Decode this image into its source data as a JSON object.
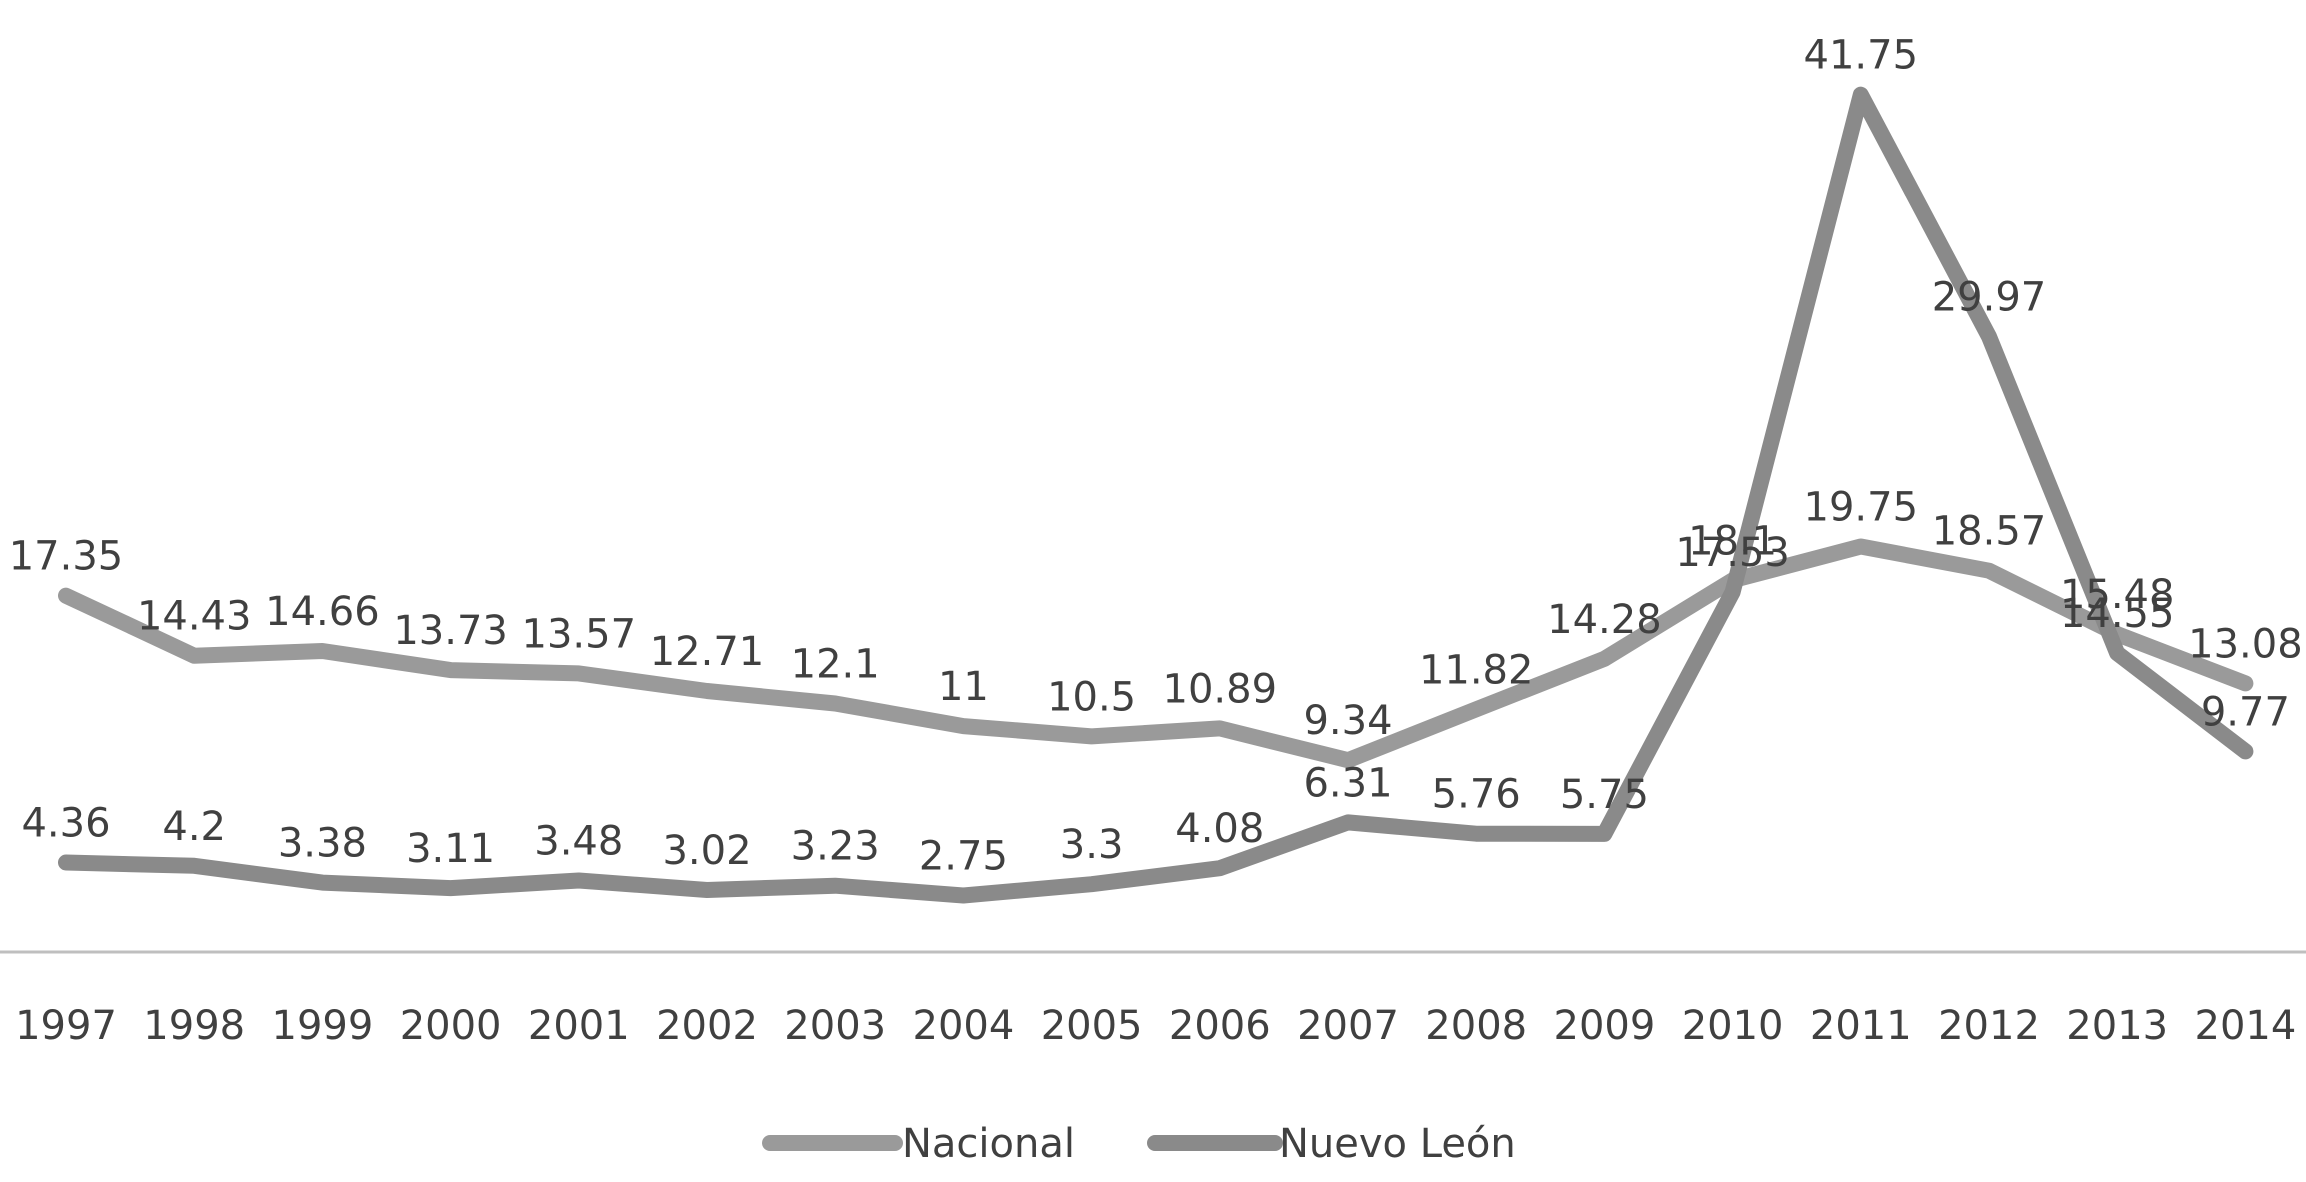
{
  "chart_data": {
    "type": "line",
    "title": "",
    "xlabel": "",
    "ylabel": "",
    "x": [
      "1997",
      "1998",
      "1999",
      "2000",
      "2001",
      "2002",
      "2003",
      "2004",
      "2005",
      "2006",
      "2007",
      "2008",
      "2009",
      "2010",
      "2011",
      "2012",
      "2013",
      "2014"
    ],
    "ylim": [
      0,
      45
    ],
    "grid": false,
    "legend": "bottom",
    "colors": {
      "Nacional": "#9a9a9a",
      "Nuevo León": "#8a8a8a",
      "axis": "#bfbfbf",
      "text": "#404040"
    },
    "series": [
      {
        "name": "Nacional",
        "values": [
          17.35,
          14.43,
          14.66,
          13.73,
          13.57,
          12.71,
          12.1,
          11,
          10.5,
          10.89,
          9.34,
          11.82,
          14.28,
          18.1,
          19.75,
          18.57,
          15.48,
          13.08
        ],
        "labels": [
          "17.35",
          "14.43",
          "14.66",
          "13.73",
          "13.57",
          "12.71",
          "12.1",
          "11",
          "10.5",
          "10.89",
          "9.34",
          "11.82",
          "14.28",
          "18.1",
          "19.75",
          "18.57",
          "15.48",
          "13.08"
        ]
      },
      {
        "name": "Nuevo León",
        "values": [
          4.36,
          4.2,
          3.38,
          3.11,
          3.48,
          3.02,
          3.23,
          2.75,
          3.3,
          4.08,
          6.31,
          5.76,
          5.75,
          17.53,
          41.75,
          29.97,
          14.55,
          9.77
        ],
        "labels": [
          "4.36",
          "4.2",
          "3.38",
          "3.11",
          "3.48",
          "3.02",
          "3.23",
          "2.75",
          "3.3",
          "4.08",
          "6.31",
          "5.76",
          "5.75",
          "17.53",
          "41.75",
          "29.97",
          "14.55",
          "9.77"
        ]
      }
    ]
  }
}
